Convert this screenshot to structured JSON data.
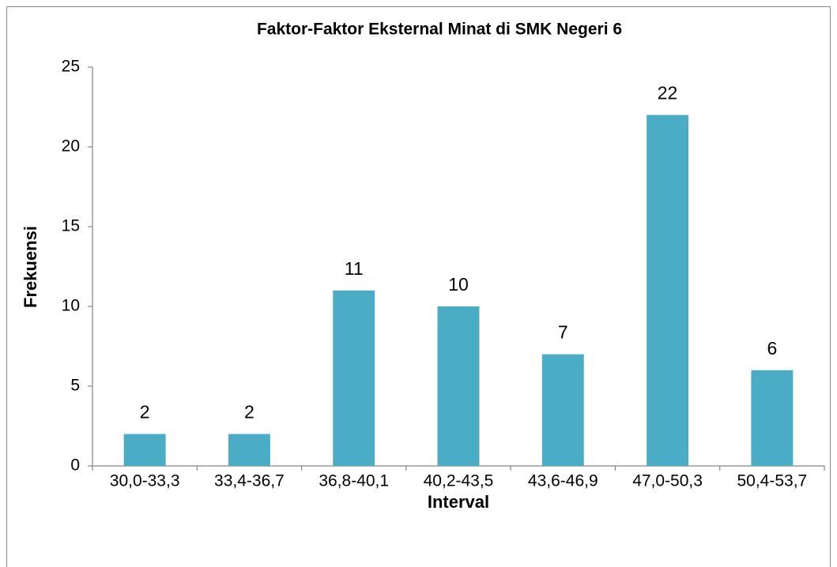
{
  "chart_data": {
    "type": "bar",
    "title": "Faktor-Faktor Eksternal Minat di SMK Negeri 6",
    "xlabel": "Interval",
    "ylabel": "Frekuensi",
    "categories": [
      "30,0-33,3",
      "33,4-36,7",
      "36,8-40,1",
      "40,2-43,5",
      "43,6-46,9",
      "47,0-50,3",
      "50,4-53,7"
    ],
    "values": [
      2,
      2,
      11,
      10,
      7,
      22,
      6
    ],
    "color": "#4bacc6",
    "ylim": [
      0,
      25
    ],
    "yticks": [
      0,
      5,
      10,
      15,
      20,
      25
    ],
    "grid": false,
    "data_labels": true
  }
}
